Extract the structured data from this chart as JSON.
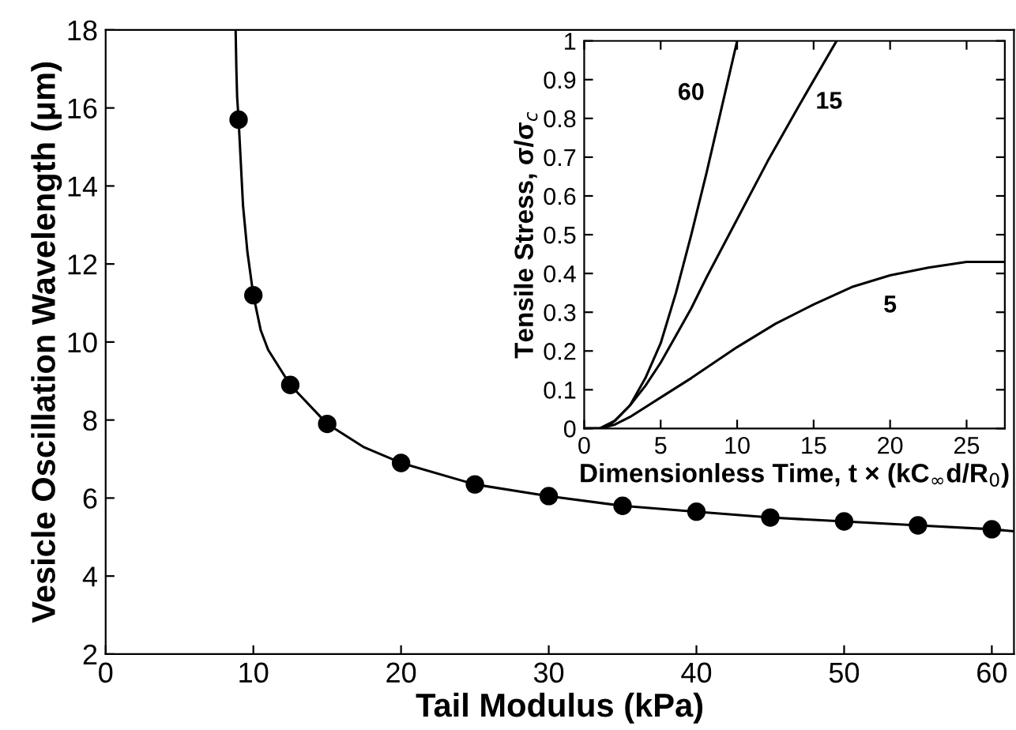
{
  "chart_data": [
    {
      "type": "line",
      "xlabel": "Tail Modulus (kPa)",
      "ylabel": "Vesicle Oscillation Wavelength (μm)",
      "xlim": [
        0,
        61.5
      ],
      "ylim": [
        2,
        18
      ],
      "xticks": [
        0,
        10,
        20,
        30,
        40,
        50,
        60
      ],
      "yticks": [
        2,
        4,
        6,
        8,
        10,
        12,
        14,
        16,
        18
      ],
      "grid": false,
      "legend": false,
      "series": [
        {
          "type": "line",
          "color": "#000000",
          "marker": "none",
          "line_style": "solid",
          "x": [
            8.8,
            8.85,
            8.9,
            9,
            9.3,
            9.6,
            10,
            10.5,
            11,
            12.5,
            15,
            17.5,
            20,
            25,
            30,
            35,
            40,
            45,
            50,
            55,
            60,
            61.5
          ],
          "values": [
            18,
            17,
            16.3,
            15.7,
            13.5,
            12.3,
            11.2,
            10.3,
            9.8,
            8.9,
            7.9,
            7.3,
            6.9,
            6.35,
            6.05,
            5.8,
            5.65,
            5.5,
            5.4,
            5.3,
            5.2,
            5.15
          ]
        },
        {
          "type": "scatter",
          "color": "#000000",
          "marker": "circle",
          "x": [
            9,
            10,
            12.5,
            15,
            20,
            25,
            30,
            35,
            40,
            45,
            50,
            55,
            60
          ],
          "values": [
            15.7,
            11.2,
            8.9,
            7.9,
            6.9,
            6.35,
            6.05,
            5.8,
            5.65,
            5.5,
            5.4,
            5.3,
            5.2
          ]
        }
      ]
    },
    {
      "type": "line",
      "xlabel": "Dimensionless Time, t × (kC$_{∞}$d/R$_{0}$)",
      "ylabel": "Tensile Stress, σ/σ$_{c}$",
      "xlim": [
        0,
        27.5
      ],
      "ylim": [
        0,
        1
      ],
      "xticks": [
        0,
        5,
        10,
        15,
        20,
        25
      ],
      "yticks": [
        0,
        0.1,
        0.2,
        0.3,
        0.4,
        0.5,
        0.6,
        0.7,
        0.8,
        0.9,
        1
      ],
      "grid": false,
      "legend": false,
      "series": [
        {
          "name": "60",
          "color": "#000000",
          "marker": "none",
          "line_style": "solid",
          "x": [
            0,
            1,
            1.5,
            2,
            3,
            4,
            5,
            6,
            7,
            8,
            9,
            10
          ],
          "values": [
            0,
            0,
            0.005,
            0.02,
            0.06,
            0.13,
            0.22,
            0.35,
            0.5,
            0.66,
            0.83,
            1.0
          ]
        },
        {
          "name": "15",
          "color": "#000000",
          "marker": "none",
          "line_style": "solid",
          "x": [
            0,
            1,
            2,
            3,
            4,
            5,
            6,
            7,
            8,
            10,
            12,
            14,
            16.5
          ],
          "values": [
            0,
            0,
            0.02,
            0.06,
            0.11,
            0.17,
            0.24,
            0.31,
            0.39,
            0.54,
            0.69,
            0.83,
            1.0
          ]
        },
        {
          "name": "5",
          "color": "#000000",
          "marker": "none",
          "line_style": "solid",
          "x": [
            0,
            1,
            2,
            3,
            5,
            7,
            10,
            12.5,
            15,
            17.5,
            20,
            22.5,
            25,
            27.5
          ],
          "values": [
            0,
            0,
            0.01,
            0.03,
            0.08,
            0.13,
            0.21,
            0.27,
            0.32,
            0.365,
            0.395,
            0.415,
            0.43,
            0.43
          ]
        }
      ]
    }
  ]
}
